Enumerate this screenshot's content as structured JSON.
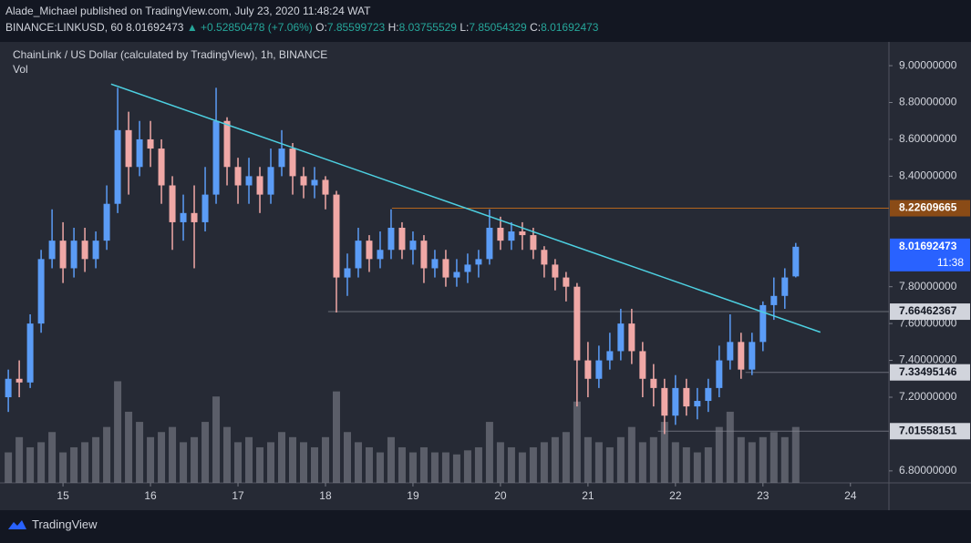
{
  "header": {
    "published": "Alade_Michael published on TradingView.com, July 23, 2020 11:48:24 WAT",
    "symbol": "BINANCE:LINKUSD, 60",
    "price": "8.01692473",
    "change": "▲ +0.52850478 (+7.06%)",
    "ohlc": [
      {
        "label": "O:",
        "value": "7.85599723"
      },
      {
        "label": "H:",
        "value": "8.03755529"
      },
      {
        "label": "L:",
        "value": "7.85054329"
      },
      {
        "label": "C:",
        "value": "8.01692473"
      }
    ]
  },
  "chart_data": {
    "type": "candlestick",
    "title": "ChainLink / US Dollar (calculated by TradingView), 1h, BINANCE",
    "subtitle": "Vol",
    "x": [
      14.375,
      14.5,
      14.625,
      14.75,
      14.875,
      15,
      15.125,
      15.25,
      15.375,
      15.5,
      15.625,
      15.75,
      15.875,
      16,
      16.125,
      16.25,
      16.375,
      16.5,
      16.625,
      16.75,
      16.875,
      17,
      17.125,
      17.25,
      17.375,
      17.5,
      17.625,
      17.75,
      17.875,
      18,
      18.125,
      18.25,
      18.375,
      18.5,
      18.625,
      18.75,
      18.875,
      19,
      19.125,
      19.25,
      19.375,
      19.5,
      19.625,
      19.75,
      19.875,
      20,
      20.125,
      20.25,
      20.375,
      20.5,
      20.625,
      20.75,
      20.875,
      21,
      21.125,
      21.25,
      21.375,
      21.5,
      21.625,
      21.75,
      21.875,
      22,
      22.125,
      22.25,
      22.375,
      22.5,
      22.625,
      22.75,
      22.875,
      23,
      23.125,
      23.25,
      23.375
    ],
    "open": [
      7.2,
      7.3,
      7.28,
      7.6,
      7.95,
      8.05,
      7.9,
      8.05,
      7.95,
      8.05,
      8.25,
      8.65,
      8.45,
      8.6,
      8.55,
      8.35,
      8.15,
      8.2,
      8.15,
      8.3,
      8.7,
      8.45,
      8.35,
      8.4,
      8.3,
      8.45,
      8.55,
      8.4,
      8.35,
      8.38,
      8.3,
      7.85,
      7.9,
      8.05,
      7.95,
      8.0,
      8.12,
      8.0,
      8.05,
      7.9,
      7.95,
      7.85,
      7.88,
      7.92,
      7.95,
      8.12,
      8.05,
      8.1,
      8.08,
      8.0,
      7.92,
      7.85,
      7.8,
      7.4,
      7.3,
      7.4,
      7.45,
      7.6,
      7.45,
      7.3,
      7.25,
      7.1,
      7.25,
      7.15,
      7.18,
      7.25,
      7.4,
      7.5,
      7.35,
      7.5,
      7.7,
      7.75,
      7.85599723
    ],
    "high": [
      7.35,
      7.4,
      7.65,
      8.0,
      8.22,
      8.15,
      8.12,
      8.12,
      8.1,
      8.35,
      8.88,
      8.75,
      8.7,
      8.7,
      8.6,
      8.4,
      8.3,
      8.35,
      8.45,
      8.88,
      8.72,
      8.5,
      8.5,
      8.45,
      8.55,
      8.65,
      8.58,
      8.45,
      8.45,
      8.4,
      8.32,
      7.98,
      8.12,
      8.08,
      8.1,
      8.22,
      8.15,
      8.1,
      8.08,
      8.0,
      8.0,
      7.95,
      7.98,
      8.0,
      8.22,
      8.18,
      8.15,
      8.15,
      8.12,
      8.02,
      7.95,
      7.88,
      7.82,
      7.5,
      7.48,
      7.55,
      7.68,
      7.68,
      7.5,
      7.38,
      7.3,
      7.32,
      7.3,
      7.25,
      7.3,
      7.48,
      7.65,
      7.55,
      7.55,
      7.72,
      7.85,
      7.9,
      8.03755529
    ],
    "low": [
      7.12,
      7.2,
      7.25,
      7.55,
      7.9,
      7.82,
      7.85,
      7.88,
      7.9,
      8.0,
      8.2,
      8.3,
      8.4,
      8.45,
      8.25,
      8.0,
      8.05,
      7.9,
      8.1,
      8.25,
      8.35,
      8.25,
      8.25,
      8.2,
      8.25,
      8.4,
      8.3,
      8.28,
      8.28,
      8.22,
      7.66,
      7.75,
      7.85,
      7.88,
      7.9,
      7.95,
      7.95,
      7.92,
      7.82,
      7.85,
      7.8,
      7.8,
      7.82,
      7.85,
      7.92,
      8.0,
      8.0,
      8.0,
      7.95,
      7.85,
      7.78,
      7.72,
      7.15,
      7.2,
      7.25,
      7.35,
      7.4,
      7.38,
      7.2,
      7.15,
      7.0,
      7.05,
      7.1,
      7.08,
      7.12,
      7.2,
      7.35,
      7.3,
      7.32,
      7.45,
      7.62,
      7.68,
      7.85054329
    ],
    "close": [
      7.3,
      7.28,
      7.6,
      7.95,
      8.05,
      7.9,
      8.05,
      7.95,
      8.05,
      8.25,
      8.65,
      8.45,
      8.6,
      8.55,
      8.35,
      8.15,
      8.2,
      8.15,
      8.3,
      8.7,
      8.45,
      8.35,
      8.4,
      8.3,
      8.45,
      8.55,
      8.4,
      8.35,
      8.38,
      8.3,
      7.85,
      7.9,
      8.05,
      7.95,
      8.0,
      8.12,
      8.0,
      8.05,
      7.9,
      7.95,
      7.85,
      7.88,
      7.92,
      7.95,
      8.12,
      8.05,
      8.1,
      8.08,
      8.0,
      7.92,
      7.85,
      7.8,
      7.4,
      7.3,
      7.4,
      7.45,
      7.6,
      7.45,
      7.3,
      7.25,
      7.1,
      7.25,
      7.15,
      7.18,
      7.25,
      7.4,
      7.5,
      7.35,
      7.5,
      7.7,
      7.75,
      7.85,
      8.01692473
    ],
    "volume": [
      30,
      45,
      35,
      40,
      50,
      30,
      35,
      40,
      45,
      55,
      100,
      70,
      60,
      45,
      50,
      55,
      40,
      45,
      60,
      85,
      55,
      40,
      45,
      35,
      40,
      50,
      45,
      40,
      35,
      45,
      90,
      50,
      40,
      35,
      30,
      45,
      35,
      30,
      35,
      30,
      30,
      28,
      32,
      35,
      60,
      40,
      35,
      30,
      35,
      40,
      45,
      50,
      80,
      45,
      40,
      35,
      45,
      55,
      40,
      45,
      60,
      40,
      35,
      30,
      35,
      55,
      70,
      45,
      40,
      45,
      50,
      45,
      55
    ],
    "volume_ylim": [
      0,
      130
    ],
    "up_color": "#5b9cf6",
    "down_color": "#f0a8a6",
    "volume_color": "#868993",
    "xlim": [
      14.28,
      24.44
    ],
    "xticks": [
      15,
      16,
      17,
      18,
      19,
      20,
      21,
      22,
      23,
      24
    ],
    "ylim": [
      6.735,
      9.129
    ],
    "yticks": [
      {
        "value": 6.8,
        "label": "6.80000000"
      },
      {
        "value": 7.2,
        "label": "7.20000000"
      },
      {
        "value": 7.4,
        "label": "7.40000000"
      },
      {
        "value": 7.6,
        "label": "7.60000000"
      },
      {
        "value": 7.8,
        "label": "7.80000000"
      },
      {
        "value": 8.4,
        "label": "8.40000000"
      },
      {
        "value": 8.6,
        "label": "8.60000000"
      },
      {
        "value": 8.8,
        "label": "8.80000000"
      },
      {
        "value": 9,
        "label": "9.00000000"
      }
    ],
    "trendline": {
      "x": [
        15.55,
        23.656
      ],
      "y": [
        8.9,
        7.553
      ],
      "color": "#4dd0e1"
    },
    "levels": [
      {
        "value": 8.22609665,
        "x": 18.76,
        "color": "#b5651d",
        "label_bg": "#8a4b16",
        "label_color": "#ffffff"
      },
      {
        "value": 7.66462367,
        "x": 18.03,
        "color": "#6a6d78",
        "label_bg": "#d1d4dc",
        "label_color": "#131722"
      },
      {
        "value": 7.33495146,
        "x": 22.8,
        "color": "#6a6d78",
        "label_bg": "#d1d4dc",
        "label_color": "#131722"
      },
      {
        "value": 7.01558151,
        "x": 21.8,
        "color": "#6a6d78",
        "label_bg": "#d1d4dc",
        "label_color": "#131722"
      }
    ],
    "countdown": "11:38",
    "price_label_bg": "#2962ff"
  },
  "footer": {
    "brand": "TradingView"
  }
}
